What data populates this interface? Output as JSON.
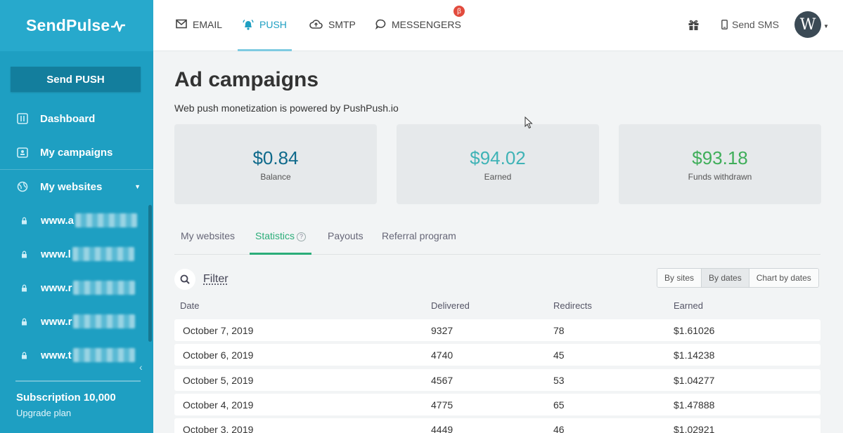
{
  "brand": {
    "name": "SendPulse"
  },
  "sidebar": {
    "send_button": "Send PUSH",
    "items": [
      {
        "label": "Dashboard",
        "icon": "dashboard-icon"
      },
      {
        "label": "My campaigns",
        "icon": "campaigns-icon"
      },
      {
        "label": "My websites",
        "icon": "globe-icon"
      }
    ],
    "sites": [
      {
        "label": "www.a"
      },
      {
        "label": "www.l"
      },
      {
        "label": "www.r"
      },
      {
        "label": "www.r"
      },
      {
        "label": "www.t"
      }
    ],
    "subscription": "Subscription 10,000",
    "upgrade": "Upgrade plan"
  },
  "topnav": {
    "tabs": [
      {
        "label": "EMAIL",
        "icon": "envelope-icon"
      },
      {
        "label": "PUSH",
        "icon": "bell-icon",
        "active": true
      },
      {
        "label": "SMTP",
        "icon": "cloud-upload-icon"
      },
      {
        "label": "MESSENGERS",
        "icon": "chat-icon",
        "badge": "β"
      }
    ],
    "send_sms": "Send SMS",
    "avatar_initial": "W"
  },
  "page": {
    "title": "Ad campaigns",
    "subtitle": "Web push monetization is powered by PushPush.io"
  },
  "cards": [
    {
      "amount": "$0.84",
      "label": "Balance",
      "color": "#0f6a8b"
    },
    {
      "amount": "$94.02",
      "label": "Earned",
      "color": "#3fb3b6"
    },
    {
      "amount": "$93.18",
      "label": "Funds withdrawn",
      "color": "#3fae5a"
    }
  ],
  "subtabs": [
    {
      "label": "My websites"
    },
    {
      "label": "Statistics",
      "active": true
    },
    {
      "label": "Payouts"
    },
    {
      "label": "Referral program"
    }
  ],
  "filter": {
    "label": "Filter"
  },
  "view_options": [
    {
      "label": "By sites"
    },
    {
      "label": "By dates",
      "active": true
    },
    {
      "label": "Chart by dates"
    }
  ],
  "table": {
    "columns": [
      "Date",
      "Delivered",
      "Redirects",
      "Earned"
    ],
    "rows": [
      [
        "October 7, 2019",
        "9327",
        "78",
        "$1.61026"
      ],
      [
        "October 6, 2019",
        "4740",
        "45",
        "$1.14238"
      ],
      [
        "October 5, 2019",
        "4567",
        "53",
        "$1.04277"
      ],
      [
        "October 4, 2019",
        "4775",
        "65",
        "$1.47888"
      ],
      [
        "October 3, 2019",
        "4449",
        "46",
        "$1.02921"
      ]
    ]
  }
}
